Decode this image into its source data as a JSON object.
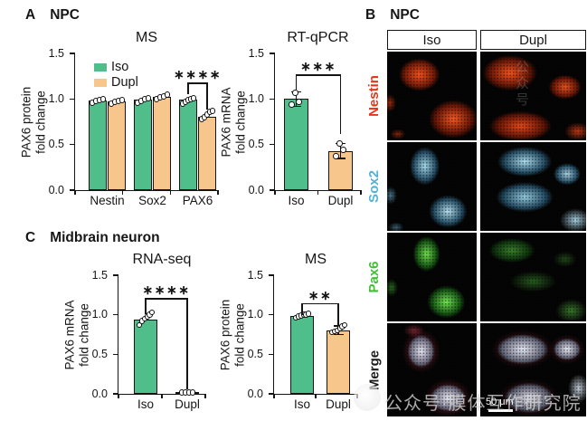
{
  "panels": {
    "A": {
      "label": "A",
      "title": "NPC"
    },
    "B": {
      "label": "B",
      "title": "NPC",
      "columns": [
        "Iso",
        "Dupl"
      ],
      "rows": [
        {
          "label": "Nestin",
          "color": "#E0391B"
        },
        {
          "label": "Sox2",
          "color": "#4FB3D9"
        },
        {
          "label": "Pax6",
          "color": "#3FBF33"
        },
        {
          "label": "Merge",
          "color": "#1A1A1A"
        }
      ],
      "scale_bar": "50 μm"
    },
    "C": {
      "label": "C",
      "title": "Midbrain neuron"
    }
  },
  "watermark": {
    "text": "公众号·膜体互作研究院",
    "ghost_text": "公众号"
  },
  "chart_data": [
    {
      "id": "npc_ms",
      "type": "bar",
      "title": "MS",
      "ylabel": [
        "PAX6 protein",
        "fold change"
      ],
      "ylim": [
        0,
        1.5
      ],
      "yticks": [
        "0.0",
        "0.5",
        "1.0",
        "1.5"
      ],
      "categories": [
        "Nestin",
        "Sox2",
        "PAX6"
      ],
      "series": [
        {
          "name": "Iso",
          "color": "#4FBE8B",
          "values": [
            0.98,
            0.99,
            0.99
          ],
          "points": [
            [
              0.96,
              0.98,
              0.99,
              1.0
            ],
            [
              0.96,
              0.98,
              1.0,
              1.01
            ],
            [
              0.95,
              0.97,
              0.99,
              1.0,
              1.01
            ]
          ]
        },
        {
          "name": "Dupl",
          "color": "#F6C68C",
          "values": [
            0.97,
            1.02,
            0.8
          ],
          "points": [
            [
              0.95,
              0.97,
              0.98,
              0.99
            ],
            [
              1.0,
              1.02,
              1.03,
              1.05
            ],
            [
              0.78,
              0.8,
              0.83,
              0.86,
              0.87
            ]
          ]
        }
      ],
      "legend": {
        "show": true,
        "position": "top-left"
      },
      "significance": [
        {
          "label": "****",
          "y": 1.18,
          "from": {
            "cat": 2,
            "ser": 0
          },
          "to": {
            "cat": 2,
            "ser": 1
          },
          "drop_from": 0.13,
          "drop_to": 0.3
        }
      ]
    },
    {
      "id": "npc_rtqpcr",
      "type": "bar",
      "title": "RT-qPCR",
      "ylabel": [
        "PAX6 mRNA",
        "fold change"
      ],
      "ylim": [
        0,
        1.5
      ],
      "yticks": [
        "0.0",
        "0.5",
        "1.0",
        "1.5"
      ],
      "categories": [
        "Iso",
        "Dupl"
      ],
      "values": [
        1.0,
        0.43
      ],
      "bar_colors": [
        "#4FBE8B",
        "#F6C68C"
      ],
      "points": [
        [
          0.94,
          0.97,
          1.07
        ],
        [
          0.37,
          0.44,
          0.51
        ]
      ],
      "error": [
        [
          0.92,
          1.08
        ],
        [
          0.35,
          0.51
        ]
      ],
      "significance": [
        {
          "label": "***",
          "y": 1.27,
          "from": {
            "cat": 0
          },
          "to": {
            "cat": 1
          },
          "drop_from": 0.17,
          "drop_to": 0.65
        }
      ]
    },
    {
      "id": "mid_rnaseq",
      "type": "bar",
      "title": "RNA-seq",
      "ylabel": [
        "PAX6 mRNA",
        "fold change"
      ],
      "ylim": [
        0,
        1.5
      ],
      "yticks": [
        "0.0",
        "0.5",
        "1.0",
        "1.5"
      ],
      "categories": [
        "Iso",
        "Dupl"
      ],
      "values": [
        0.94,
        0.02
      ],
      "bar_colors": [
        "#4FBE8B",
        "#F6C68C"
      ],
      "points": [
        [
          0.87,
          0.92,
          0.95,
          0.98,
          1.0,
          1.03
        ],
        [
          0.02,
          0.02,
          0.02,
          0.02
        ]
      ],
      "significance": [
        {
          "label": "****",
          "y": 1.21,
          "from": {
            "cat": 0
          },
          "to": {
            "cat": 1
          },
          "drop_from": 0.2,
          "drop_to": 1.15
        }
      ]
    },
    {
      "id": "mid_ms",
      "type": "bar",
      "title": "MS",
      "ylabel": [
        "PAX6 protein",
        "fold change"
      ],
      "ylim": [
        0,
        1.5
      ],
      "yticks": [
        "0.0",
        "0.5",
        "1.0",
        "1.5"
      ],
      "categories": [
        "Iso",
        "Dupl"
      ],
      "values": [
        0.98,
        0.8
      ],
      "bar_colors": [
        "#4FBE8B",
        "#F6C68C"
      ],
      "points": [
        [
          0.96,
          0.98,
          0.99,
          1.0,
          1.0,
          1.01
        ],
        [
          0.78,
          0.79,
          0.8,
          0.83,
          0.85,
          0.87
        ]
      ],
      "error": [
        null,
        [
          0.75,
          0.86
        ]
      ],
      "significance": [
        {
          "label": "**",
          "y": 1.15,
          "from": {
            "cat": 0
          },
          "to": {
            "cat": 1
          },
          "drop_from": 0.15,
          "drop_to": 0.28
        }
      ]
    }
  ]
}
